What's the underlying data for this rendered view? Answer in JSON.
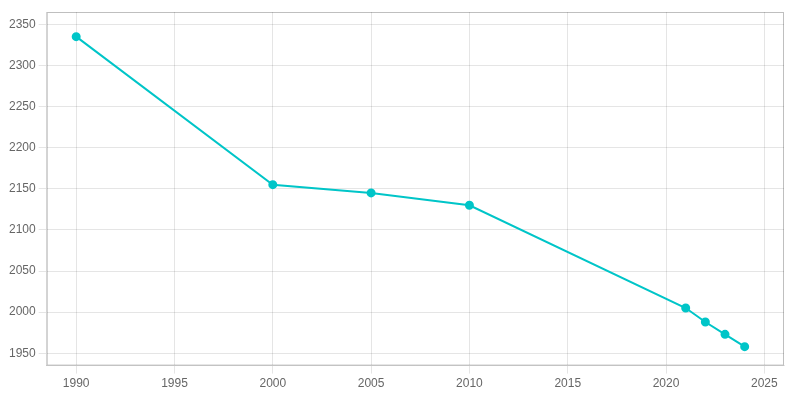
{
  "chart_data": {
    "type": "line",
    "x": [
      1990,
      2000,
      2005,
      2010,
      2021,
      2022,
      2023,
      2024
    ],
    "values": [
      2335,
      2155,
      2145,
      2130,
      2005,
      1988,
      1973,
      1958
    ],
    "color": "#00C5C8",
    "marker": "circle",
    "xlim": [
      1988.5,
      2026
    ],
    "ylim": [
      1935,
      2365
    ],
    "xticks": [
      1990,
      1995,
      2000,
      2005,
      2010,
      2015,
      2020,
      2025
    ],
    "yticks": [
      1950,
      2000,
      2050,
      2100,
      2150,
      2200,
      2250,
      2300,
      2350
    ],
    "grid": true
  }
}
